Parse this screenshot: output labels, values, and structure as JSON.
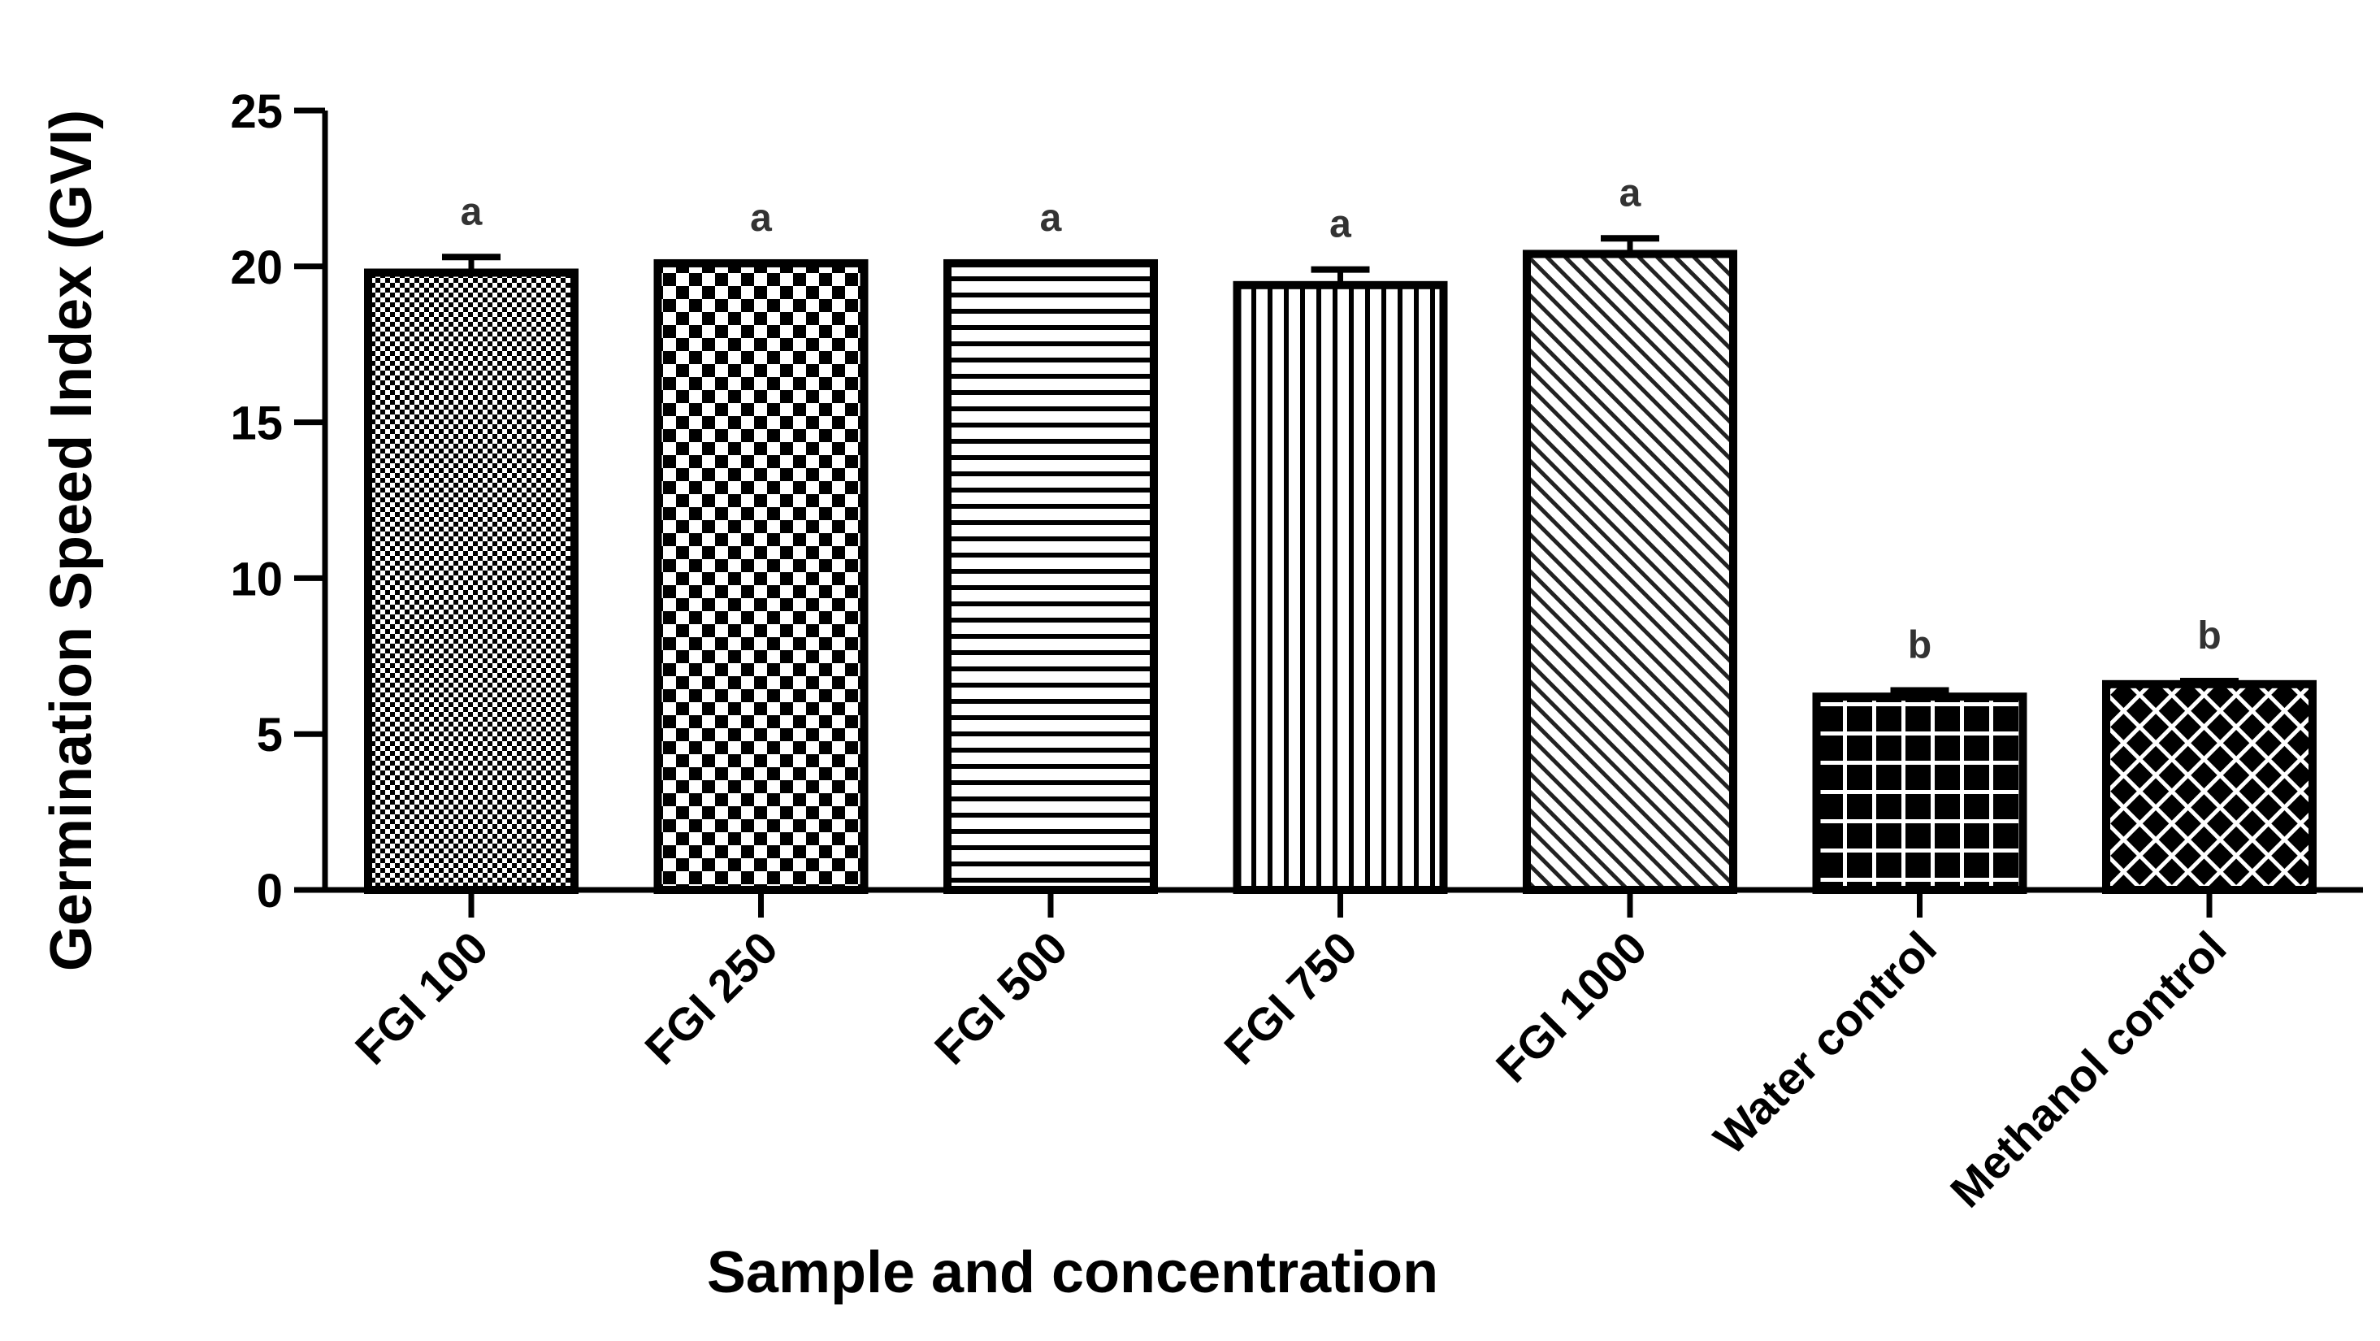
{
  "chart_data": {
    "type": "bar",
    "title": "",
    "xlabel": "Sample and concentration",
    "ylabel": "Germination Speed Index (GVI)",
    "ylim": [
      0,
      25
    ],
    "yticks": [
      0,
      5,
      10,
      15,
      20,
      25
    ],
    "grid": false,
    "legend": "none",
    "categories": [
      "FGI 100",
      "FGI 250",
      "FGI 500",
      "FGI 750",
      "FGI 1000",
      "Water control",
      "Methanol control"
    ],
    "values": [
      19.8,
      20.1,
      20.1,
      19.4,
      20.4,
      6.2,
      6.6
    ],
    "errors": [
      0.5,
      0.0,
      0.0,
      0.5,
      0.5,
      0.2,
      0.1
    ],
    "significance": [
      "a",
      "a",
      "a",
      "a",
      "a",
      "b",
      "b"
    ],
    "patterns": [
      "fine-checker",
      "checker",
      "horizontal-lines",
      "vertical-lines",
      "diagonal-hatch",
      "grid",
      "crosshatch"
    ],
    "colors": {
      "bar_stroke": "#000000",
      "axis": "#000000",
      "text": "#000000",
      "significance_text": "#333333"
    }
  }
}
